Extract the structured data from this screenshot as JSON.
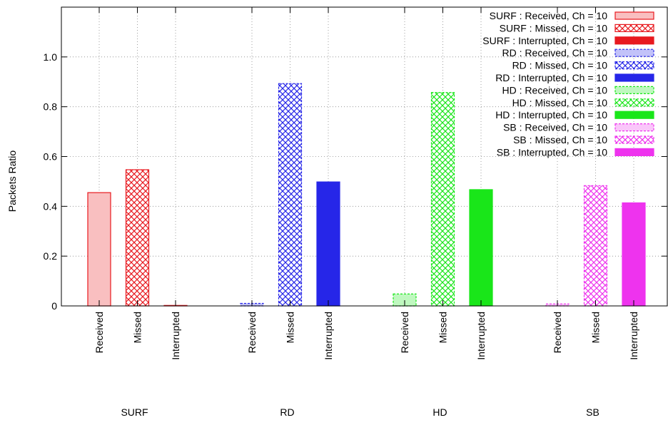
{
  "chart_data": {
    "type": "bar",
    "title": "",
    "xlabel": "",
    "ylabel": "Packets Ratio",
    "ylim": [
      0,
      1.2
    ],
    "yticks": [
      0,
      0.2,
      0.4,
      0.6,
      0.8,
      1.0
    ],
    "ytick_labels": [
      "0",
      "0.2",
      "0.4",
      "0.6",
      "0.8",
      "1.0"
    ],
    "grid": true,
    "legend_placement": "top-right",
    "groups": [
      {
        "name": "SURF",
        "color": "#e8191f",
        "bars": [
          {
            "label": "Received",
            "value": 0.455,
            "legend": "SURF : Received, Ch = 10",
            "pattern": "light"
          },
          {
            "label": "Missed",
            "value": 0.547,
            "legend": "SURF : Missed, Ch = 10",
            "pattern": "cross"
          },
          {
            "label": "Interrupted",
            "value": 0.002,
            "legend": "SURF : Interrupted, Ch = 10",
            "pattern": "solid"
          }
        ]
      },
      {
        "name": "RD",
        "color": "#2626e8",
        "bars": [
          {
            "label": "Received",
            "value": 0.01,
            "legend": "RD : Received, Ch = 10",
            "pattern": "light"
          },
          {
            "label": "Missed",
            "value": 0.893,
            "legend": "RD : Missed, Ch = 10",
            "pattern": "cross"
          },
          {
            "label": "Interrupted",
            "value": 0.498,
            "legend": "RD : Interrupted, Ch = 10",
            "pattern": "solid"
          }
        ]
      },
      {
        "name": "HD",
        "color": "#19e619",
        "bars": [
          {
            "label": "Received",
            "value": 0.048,
            "legend": "HD : Received, Ch = 10",
            "pattern": "light"
          },
          {
            "label": "Missed",
            "value": 0.857,
            "legend": "HD : Missed, Ch = 10",
            "pattern": "cross"
          },
          {
            "label": "Interrupted",
            "value": 0.467,
            "legend": "HD : Interrupted, Ch = 10",
            "pattern": "solid"
          }
        ]
      },
      {
        "name": "SB",
        "color": "#ee33ee",
        "bars": [
          {
            "label": "Received",
            "value": 0.008,
            "legend": "SB : Received, Ch = 10",
            "pattern": "light"
          },
          {
            "label": "Missed",
            "value": 0.483,
            "legend": "SB : Missed, Ch = 10",
            "pattern": "cross"
          },
          {
            "label": "Interrupted",
            "value": 0.414,
            "legend": "SB : Interrupted, Ch = 10",
            "pattern": "solid"
          }
        ]
      }
    ]
  }
}
